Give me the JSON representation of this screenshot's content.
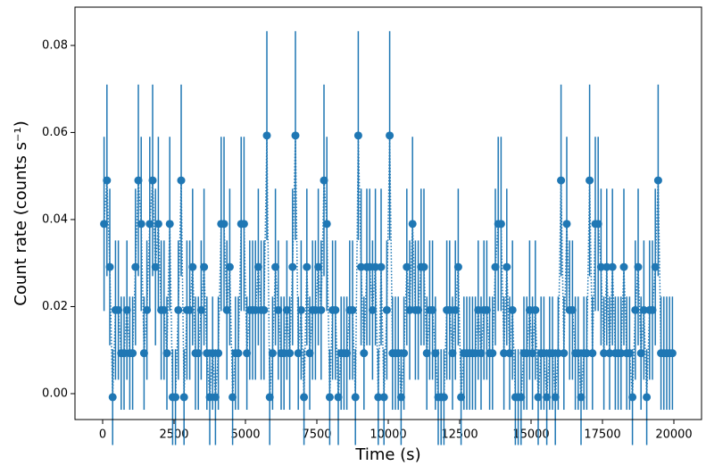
{
  "chart_data": {
    "type": "errorbar",
    "xlabel": "Time (s)",
    "ylabel": "Count rate (counts s⁻¹)",
    "color": "#1f77b4",
    "xlim": [
      -969,
      20969
    ],
    "ylim": [
      -0.00595,
      0.0888
    ],
    "xticks": [
      0,
      2500,
      5000,
      7500,
      10000,
      12500,
      15000,
      17500,
      20000
    ],
    "yticks": [
      {
        "value": 0,
        "label": "0.00"
      },
      {
        "value": 0.02,
        "label": "0.02"
      },
      {
        "value": 0.04,
        "label": "0.04"
      },
      {
        "value": 0.06,
        "label": "0.06"
      },
      {
        "value": 0.08,
        "label": "0.08"
      }
    ],
    "x": [
      50,
      150,
      250,
      350,
      450,
      550,
      650,
      750,
      850,
      950,
      1050,
      1150,
      1250,
      1350,
      1450,
      1550,
      1650,
      1750,
      1850,
      1950,
      2050,
      2150,
      2250,
      2350,
      2450,
      2550,
      2650,
      2750,
      2850,
      2950,
      3050,
      3150,
      3250,
      3350,
      3450,
      3550,
      3650,
      3750,
      3850,
      3950,
      4050,
      4150,
      4250,
      4350,
      4450,
      4550,
      4650,
      4750,
      4850,
      4950,
      5050,
      5150,
      5250,
      5350,
      5450,
      5550,
      5650,
      5750,
      5850,
      5950,
      6050,
      6150,
      6250,
      6350,
      6450,
      6550,
      6650,
      6750,
      6850,
      6950,
      7050,
      7150,
      7250,
      7350,
      7450,
      7550,
      7650,
      7750,
      7850,
      7950,
      8050,
      8150,
      8250,
      8350,
      8450,
      8550,
      8650,
      8750,
      8850,
      8950,
      9050,
      9150,
      9250,
      9350,
      9450,
      9550,
      9650,
      9750,
      9850,
      9950,
      10050,
      10150,
      10250,
      10350,
      10450,
      10550,
      10650,
      10750,
      10850,
      10950,
      11050,
      11150,
      11250,
      11350,
      11450,
      11550,
      11650,
      11750,
      11850,
      11950,
      12050,
      12150,
      12250,
      12350,
      12450,
      12550,
      12650,
      12750,
      12850,
      12950,
      13050,
      13150,
      13250,
      13350,
      13450,
      13550,
      13650,
      13750,
      13850,
      13950,
      14050,
      14150,
      14250,
      14350,
      14450,
      14550,
      14650,
      14750,
      14850,
      14950,
      15050,
      15150,
      15250,
      15350,
      15450,
      15550,
      15650,
      15750,
      15850,
      15950,
      16050,
      16150,
      16250,
      16350,
      16450,
      16550,
      16650,
      16750,
      16850,
      16950,
      17050,
      17150,
      17250,
      17350,
      17450,
      17550,
      17650,
      17750,
      17850,
      17950,
      18050,
      18150,
      18250,
      18350,
      18450,
      18550,
      18650,
      18750,
      18850,
      18950,
      19050,
      19150,
      19250,
      19350,
      19450,
      19550,
      19650,
      19750,
      19850,
      19950
    ],
    "values": [
      0.039,
      0.049,
      0.0291,
      -0.0008,
      0.0192,
      0.0192,
      0.0093,
      0.0093,
      0.0192,
      0.0093,
      0.0093,
      0.0291,
      0.049,
      0.039,
      0.0093,
      0.0192,
      0.039,
      0.049,
      0.0291,
      0.039,
      0.0192,
      0.0192,
      0.0093,
      0.039,
      -0.0008,
      -0.0008,
      0.0192,
      0.049,
      -0.0008,
      0.0192,
      0.0192,
      0.0291,
      0.0093,
      0.0093,
      0.0192,
      0.0291,
      0.0093,
      -0.0008,
      0.0093,
      -0.0008,
      0.0093,
      0.039,
      0.039,
      0.0192,
      0.0291,
      -0.0008,
      0.0093,
      0.0093,
      0.039,
      0.039,
      0.0093,
      0.0192,
      0.0192,
      0.0192,
      0.0291,
      0.0192,
      0.0192,
      0.0593,
      -0.0008,
      0.0093,
      0.0291,
      0.0192,
      0.0093,
      0.0093,
      0.0192,
      0.0093,
      0.0291,
      0.0593,
      0.0093,
      0.0192,
      -0.0008,
      0.0291,
      0.0093,
      0.0192,
      0.0192,
      0.0291,
      0.0192,
      0.049,
      0.039,
      -0.0008,
      0.0192,
      0.0192,
      -0.0008,
      0.0093,
      0.0093,
      0.0093,
      0.0192,
      0.0192,
      -0.0008,
      0.0593,
      0.0291,
      0.0093,
      0.0291,
      0.0291,
      0.0192,
      0.0291,
      -0.0008,
      0.0291,
      -0.0008,
      0.0192,
      0.0593,
      0.0093,
      0.0093,
      0.0093,
      -0.0008,
      0.0093,
      0.0291,
      0.0192,
      0.039,
      0.0192,
      0.0192,
      0.0291,
      0.0291,
      0.0093,
      0.0192,
      0.0192,
      0.0093,
      -0.0008,
      -0.0008,
      -0.0008,
      0.0192,
      0.0192,
      0.0093,
      0.0192,
      0.0291,
      -0.0008,
      0.0093,
      0.0093,
      0.0093,
      0.0093,
      0.0093,
      0.0192,
      0.0093,
      0.0192,
      0.0192,
      0.0093,
      0.0093,
      0.0291,
      0.039,
      0.039,
      0.0093,
      0.0291,
      0.0093,
      0.0192,
      -0.0008,
      -0.0008,
      -0.0008,
      0.0093,
      0.0093,
      0.0192,
      0.0093,
      0.0192,
      -0.0008,
      0.0093,
      0.0093,
      -0.0008,
      0.0093,
      0.0093,
      -0.0008,
      0.0093,
      0.049,
      0.0093,
      0.039,
      0.0192,
      0.0192,
      0.0093,
      0.0093,
      -0.0008,
      0.0093,
      0.0093,
      0.049,
      0.0093,
      0.039,
      0.039,
      0.0291,
      0.0093,
      0.0291,
      0.0093,
      0.0291,
      0.0093,
      0.0093,
      0.0093,
      0.0291,
      0.0093,
      0.0093,
      -0.0008,
      0.0192,
      0.0291,
      0.0093,
      0.0192,
      -0.0008,
      0.0192,
      0.0192,
      0.0291,
      0.049,
      0.0093,
      0.0093,
      0.0093,
      0.0093,
      0.0093
    ],
    "errors": [
      0.02,
      0.022,
      0.018,
      0.011,
      0.016,
      0.016,
      0.013,
      0.013,
      0.016,
      0.013,
      0.013,
      0.018,
      0.022,
      0.02,
      0.013,
      0.016,
      0.02,
      0.022,
      0.018,
      0.02,
      0.016,
      0.016,
      0.013,
      0.02,
      0.011,
      0.011,
      0.016,
      0.022,
      0.011,
      0.016,
      0.016,
      0.018,
      0.013,
      0.013,
      0.016,
      0.018,
      0.013,
      0.011,
      0.013,
      0.011,
      0.013,
      0.02,
      0.02,
      0.016,
      0.018,
      0.011,
      0.013,
      0.013,
      0.02,
      0.02,
      0.013,
      0.016,
      0.016,
      0.016,
      0.018,
      0.016,
      0.016,
      0.024,
      0.011,
      0.013,
      0.018,
      0.016,
      0.013,
      0.013,
      0.016,
      0.013,
      0.018,
      0.024,
      0.013,
      0.016,
      0.011,
      0.018,
      0.013,
      0.016,
      0.016,
      0.018,
      0.016,
      0.022,
      0.02,
      0.011,
      0.016,
      0.016,
      0.011,
      0.013,
      0.013,
      0.013,
      0.016,
      0.016,
      0.011,
      0.024,
      0.018,
      0.013,
      0.018,
      0.018,
      0.016,
      0.018,
      0.011,
      0.018,
      0.011,
      0.016,
      0.024,
      0.013,
      0.013,
      0.013,
      0.011,
      0.013,
      0.018,
      0.016,
      0.02,
      0.016,
      0.016,
      0.018,
      0.018,
      0.013,
      0.016,
      0.016,
      0.013,
      0.011,
      0.011,
      0.011,
      0.016,
      0.016,
      0.013,
      0.016,
      0.018,
      0.011,
      0.013,
      0.013,
      0.013,
      0.013,
      0.013,
      0.016,
      0.013,
      0.016,
      0.016,
      0.013,
      0.013,
      0.018,
      0.02,
      0.02,
      0.013,
      0.018,
      0.013,
      0.016,
      0.011,
      0.011,
      0.011,
      0.013,
      0.013,
      0.016,
      0.013,
      0.016,
      0.011,
      0.013,
      0.013,
      0.011,
      0.013,
      0.013,
      0.011,
      0.013,
      0.022,
      0.013,
      0.02,
      0.016,
      0.016,
      0.013,
      0.013,
      0.011,
      0.013,
      0.013,
      0.022,
      0.013,
      0.02,
      0.02,
      0.018,
      0.013,
      0.018,
      0.013,
      0.018,
      0.013,
      0.013,
      0.013,
      0.018,
      0.013,
      0.013,
      0.011,
      0.016,
      0.018,
      0.013,
      0.016,
      0.011,
      0.016,
      0.016,
      0.018,
      0.022,
      0.013,
      0.013,
      0.013,
      0.013,
      0.013
    ]
  }
}
